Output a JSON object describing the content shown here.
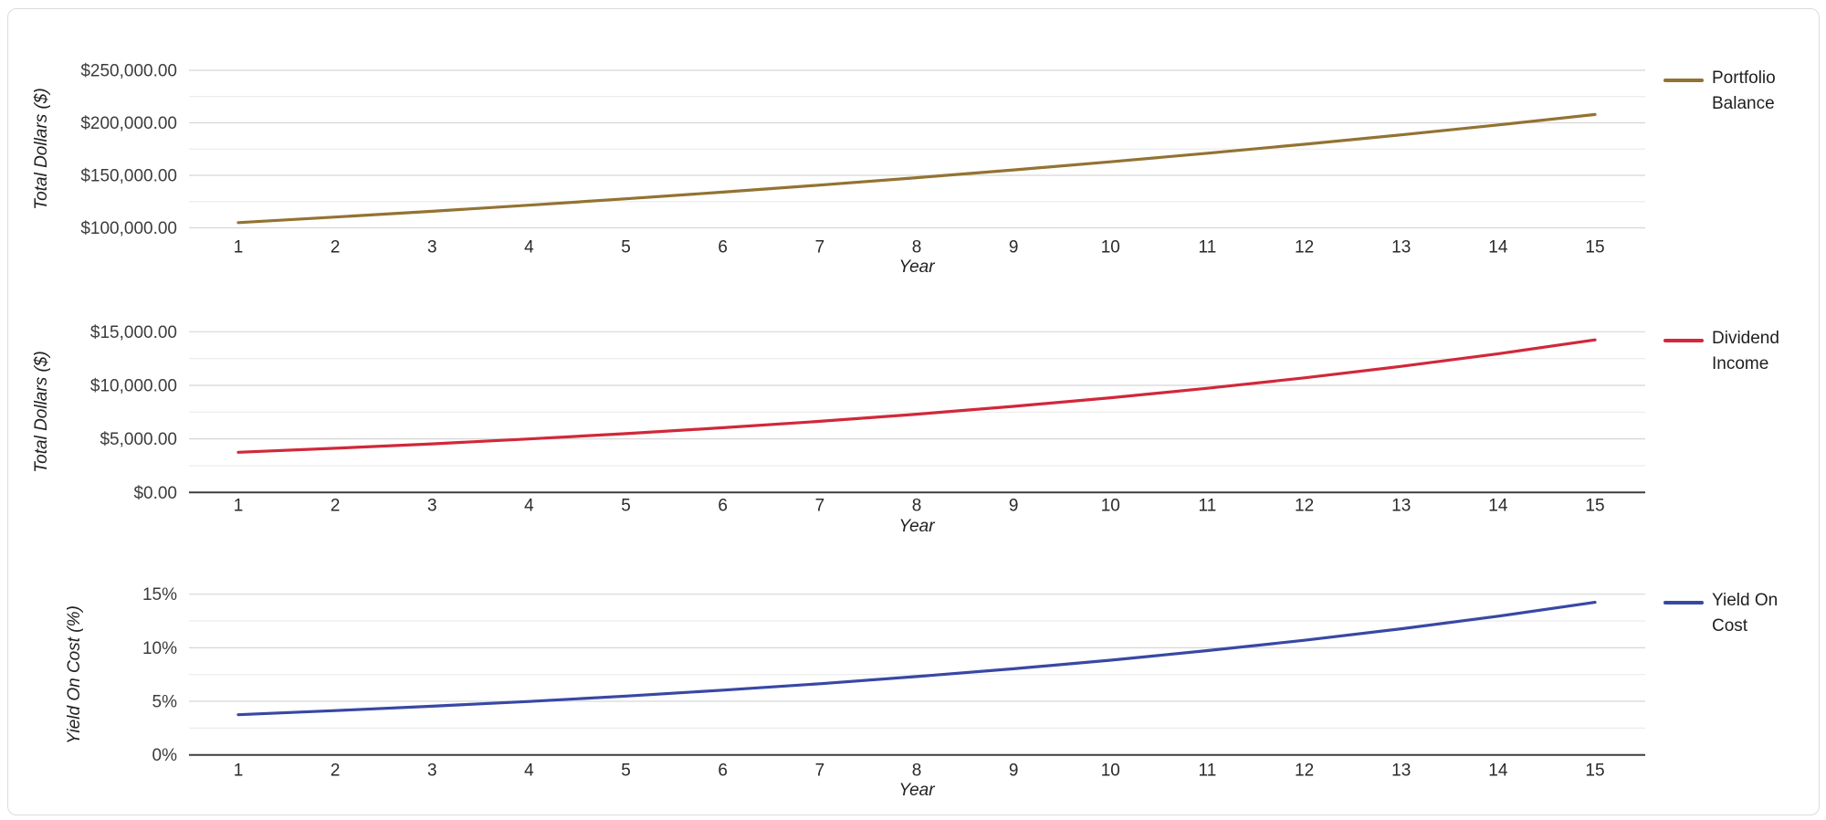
{
  "chart_data": [
    {
      "type": "line",
      "xlabel": "Year",
      "ylabel": "Total Dollars ($)",
      "x": [
        1,
        2,
        3,
        4,
        5,
        6,
        7,
        8,
        9,
        10,
        11,
        12,
        13,
        14,
        15
      ],
      "ylim": [
        100000,
        250000
      ],
      "y_major_values": [
        100000,
        150000,
        200000,
        250000
      ],
      "y_tick_labels": [
        "$100,000.00",
        "$150,000.00",
        "$200,000.00",
        "$250,000.00"
      ],
      "y_minor_values": [
        125000,
        175000,
        225000
      ],
      "grid": "horizontal",
      "legend_position": "right",
      "legend_lines": [
        "Portfolio",
        "Balance"
      ],
      "series": [
        {
          "name": "Portfolio Balance",
          "color": "#937332",
          "values": [
            105000.0,
            110250.0,
            115762.5,
            121550.63,
            127628.16,
            134009.56,
            140710.04,
            147745.54,
            155132.82,
            162889.46,
            171033.94,
            179585.63,
            188564.91,
            197993.16,
            207892.82
          ]
        }
      ]
    },
    {
      "type": "line",
      "xlabel": "Year",
      "ylabel": "Total Dollars ($)",
      "x": [
        1,
        2,
        3,
        4,
        5,
        6,
        7,
        8,
        9,
        10,
        11,
        12,
        13,
        14,
        15
      ],
      "ylim": [
        0,
        15000
      ],
      "y_major_values": [
        0,
        5000,
        10000,
        15000
      ],
      "y_tick_labels": [
        "$0.00",
        "$5,000.00",
        "$10,000.00",
        "$15,000.00"
      ],
      "y_minor_values": [
        2500,
        7500,
        12500
      ],
      "grid": "horizontal",
      "legend_position": "right",
      "legend_lines": [
        "Dividend",
        "Income"
      ],
      "series": [
        {
          "name": "Dividend Income",
          "color": "#d1283a",
          "values": [
            3750.0,
            4125.0,
            4537.5,
            4991.25,
            5490.38,
            6039.41,
            6643.35,
            7307.69,
            8038.46,
            8842.3,
            9726.53,
            10699.19,
            11769.1,
            12946.01,
            14240.62
          ]
        }
      ]
    },
    {
      "type": "line",
      "xlabel": "Year",
      "ylabel": "Yield On Cost (%)",
      "x": [
        1,
        2,
        3,
        4,
        5,
        6,
        7,
        8,
        9,
        10,
        11,
        12,
        13,
        14,
        15
      ],
      "ylim": [
        0,
        15
      ],
      "y_major_values": [
        0,
        5,
        10,
        15
      ],
      "y_tick_labels": [
        "0%",
        "5%",
        "10%",
        "15%"
      ],
      "y_minor_values": [
        2.5,
        7.5,
        12.5
      ],
      "grid": "horizontal",
      "legend_position": "right",
      "legend_lines": [
        "Yield On",
        "Cost"
      ],
      "series": [
        {
          "name": "Yield On Cost",
          "color": "#3848a4",
          "values": [
            3.75,
            4.13,
            4.54,
            4.99,
            5.49,
            6.04,
            6.64,
            7.31,
            8.04,
            8.84,
            9.73,
            10.7,
            11.77,
            12.95,
            14.24
          ]
        }
      ]
    }
  ]
}
